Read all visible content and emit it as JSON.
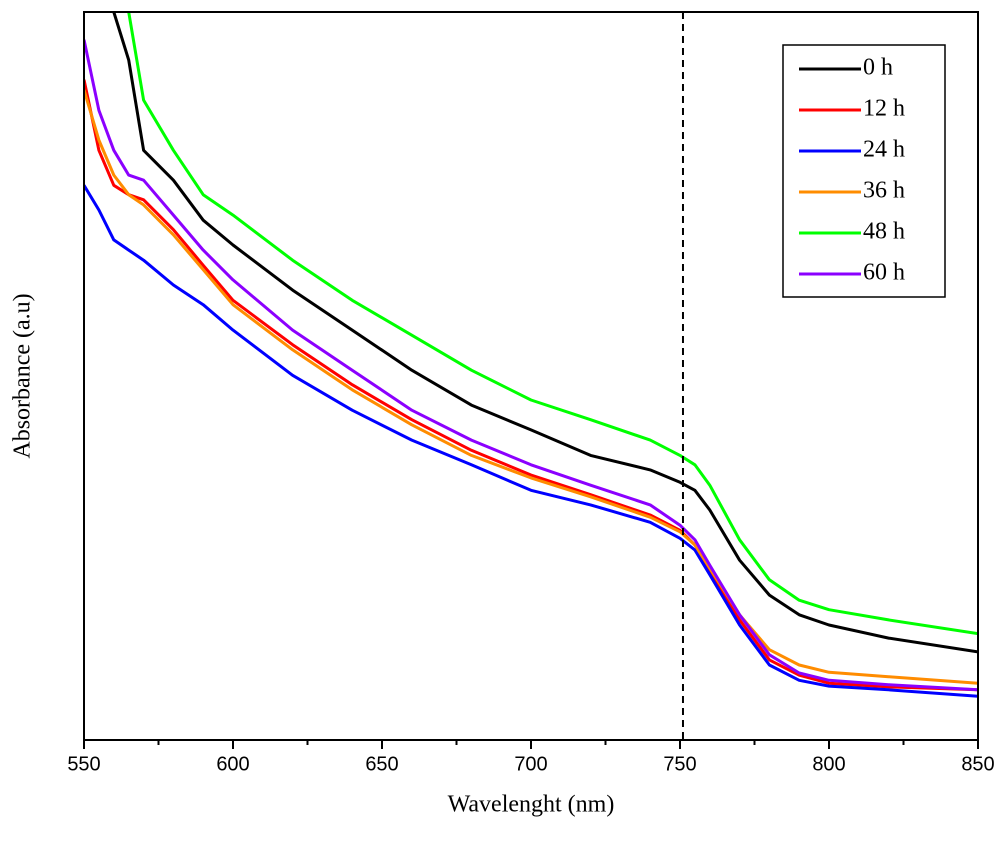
{
  "chart_data": {
    "type": "line",
    "xlabel": "Wavelenght (nm)",
    "ylabel": "Absorbance (a.u)",
    "x": [
      550,
      555,
      560,
      565,
      570,
      580,
      590,
      600,
      620,
      640,
      660,
      680,
      700,
      720,
      740,
      750,
      755,
      760,
      770,
      780,
      790,
      800,
      820,
      850
    ],
    "series": [
      {
        "name": "0 h",
        "color": "#000000",
        "values": [
          null,
          null,
          1.0,
          0.934,
          0.81,
          0.769,
          0.714,
          0.68,
          0.618,
          0.563,
          0.508,
          0.46,
          0.426,
          0.391,
          0.371,
          0.354,
          0.343,
          0.316,
          0.247,
          0.199,
          0.172,
          0.158,
          0.14,
          0.121
        ]
      },
      {
        "name": "12 h",
        "color": "#ff0000",
        "values": [
          0.907,
          0.81,
          0.762,
          0.749,
          0.742,
          0.701,
          0.652,
          0.604,
          0.543,
          0.488,
          0.44,
          0.398,
          0.364,
          0.337,
          0.309,
          0.288,
          0.268,
          0.234,
          0.165,
          0.11,
          0.089,
          0.078,
          0.073,
          0.069
        ]
      },
      {
        "name": "24 h",
        "color": "#0000ff",
        "values": [
          0.762,
          0.728,
          0.687,
          0.673,
          0.659,
          0.625,
          0.598,
          0.563,
          0.501,
          0.453,
          0.412,
          0.378,
          0.343,
          0.323,
          0.299,
          0.277,
          0.261,
          0.227,
          0.158,
          0.103,
          0.082,
          0.074,
          0.069,
          0.06
        ]
      },
      {
        "name": "36 h",
        "color": "#ff8c00",
        "values": [
          0.893,
          0.824,
          0.776,
          0.749,
          0.735,
          0.694,
          0.646,
          0.598,
          0.536,
          0.481,
          0.433,
          0.391,
          0.36,
          0.334,
          0.306,
          0.286,
          0.268,
          0.236,
          0.172,
          0.124,
          0.103,
          0.093,
          0.087,
          0.078
        ]
      },
      {
        "name": "48 h",
        "color": "#00ff00",
        "values": [
          null,
          null,
          null,
          1.0,
          0.879,
          0.81,
          0.749,
          0.721,
          0.659,
          0.604,
          0.556,
          0.508,
          0.467,
          0.44,
          0.412,
          0.391,
          0.378,
          0.35,
          0.275,
          0.22,
          0.192,
          0.179,
          0.165,
          0.146
        ]
      },
      {
        "name": "60 h",
        "color": "#8b00ff",
        "values": [
          0.962,
          0.865,
          0.81,
          0.776,
          0.769,
          0.721,
          0.673,
          0.632,
          0.563,
          0.508,
          0.453,
          0.412,
          0.378,
          0.35,
          0.323,
          0.295,
          0.275,
          0.24,
          0.172,
          0.117,
          0.092,
          0.082,
          0.076,
          0.069
        ]
      }
    ],
    "xlim": [
      550,
      850
    ],
    "xticks": [
      550,
      600,
      650,
      700,
      750,
      800,
      850
    ],
    "xticks_minor": [
      575,
      625,
      675,
      725,
      775,
      825
    ],
    "ylim": [
      0,
      1
    ],
    "yticks": [],
    "vline": 751,
    "legend": "upper right"
  }
}
